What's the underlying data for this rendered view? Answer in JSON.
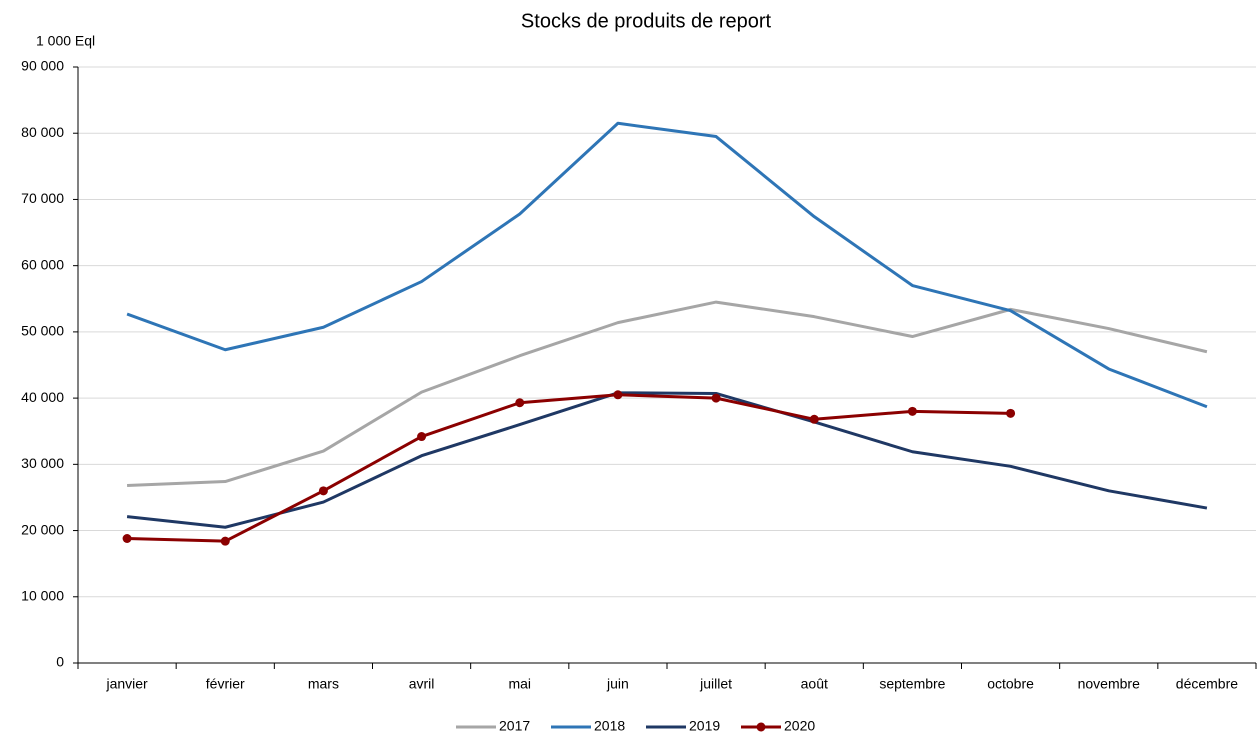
{
  "chart_data": {
    "type": "line",
    "title": "Stocks de produits de report",
    "y_axis_label": "1 000 Eql",
    "categories": [
      "janvier",
      "février",
      "mars",
      "avril",
      "mai",
      "juin",
      "juillet",
      "août",
      "septembre",
      "octobre",
      "novembre",
      "décembre"
    ],
    "series": [
      {
        "name": "2017",
        "color": "#a6a6a6",
        "markers": false,
        "values": [
          26800,
          27400,
          32000,
          40900,
          46400,
          51400,
          54500,
          52300,
          49300,
          53400,
          50500,
          47000
        ]
      },
      {
        "name": "2018",
        "color": "#2e75b6",
        "markers": false,
        "values": [
          52700,
          47300,
          50700,
          57600,
          67800,
          81500,
          79500,
          67400,
          57000,
          53200,
          44400,
          38700
        ]
      },
      {
        "name": "2019",
        "color": "#1f3864",
        "markers": false,
        "values": [
          22100,
          20500,
          24300,
          31300,
          36000,
          40800,
          40700,
          36400,
          31900,
          29700,
          26000,
          23400
        ]
      },
      {
        "name": "2020",
        "color": "#8b0000",
        "markers": true,
        "values": [
          18800,
          18400,
          26000,
          34200,
          39300,
          40500,
          40000,
          36800,
          38000,
          37700,
          null,
          null
        ]
      }
    ],
    "ylim": [
      0,
      90000
    ],
    "yticks": [
      0,
      {
        "value": 10000,
        "label": "10 000"
      },
      {
        "value": 20000,
        "label": "20 000"
      },
      {
        "value": 30000,
        "label": "30 000"
      },
      {
        "value": 40000,
        "label": "40 000"
      },
      {
        "value": 50000,
        "label": "50 000"
      },
      {
        "value": 60000,
        "label": "60 000"
      },
      {
        "value": 70000,
        "label": "70 000"
      },
      {
        "value": 80000,
        "label": "80 000"
      },
      {
        "value": 90000,
        "label": "90 000"
      }
    ],
    "grid": true,
    "legend": "bottom"
  }
}
